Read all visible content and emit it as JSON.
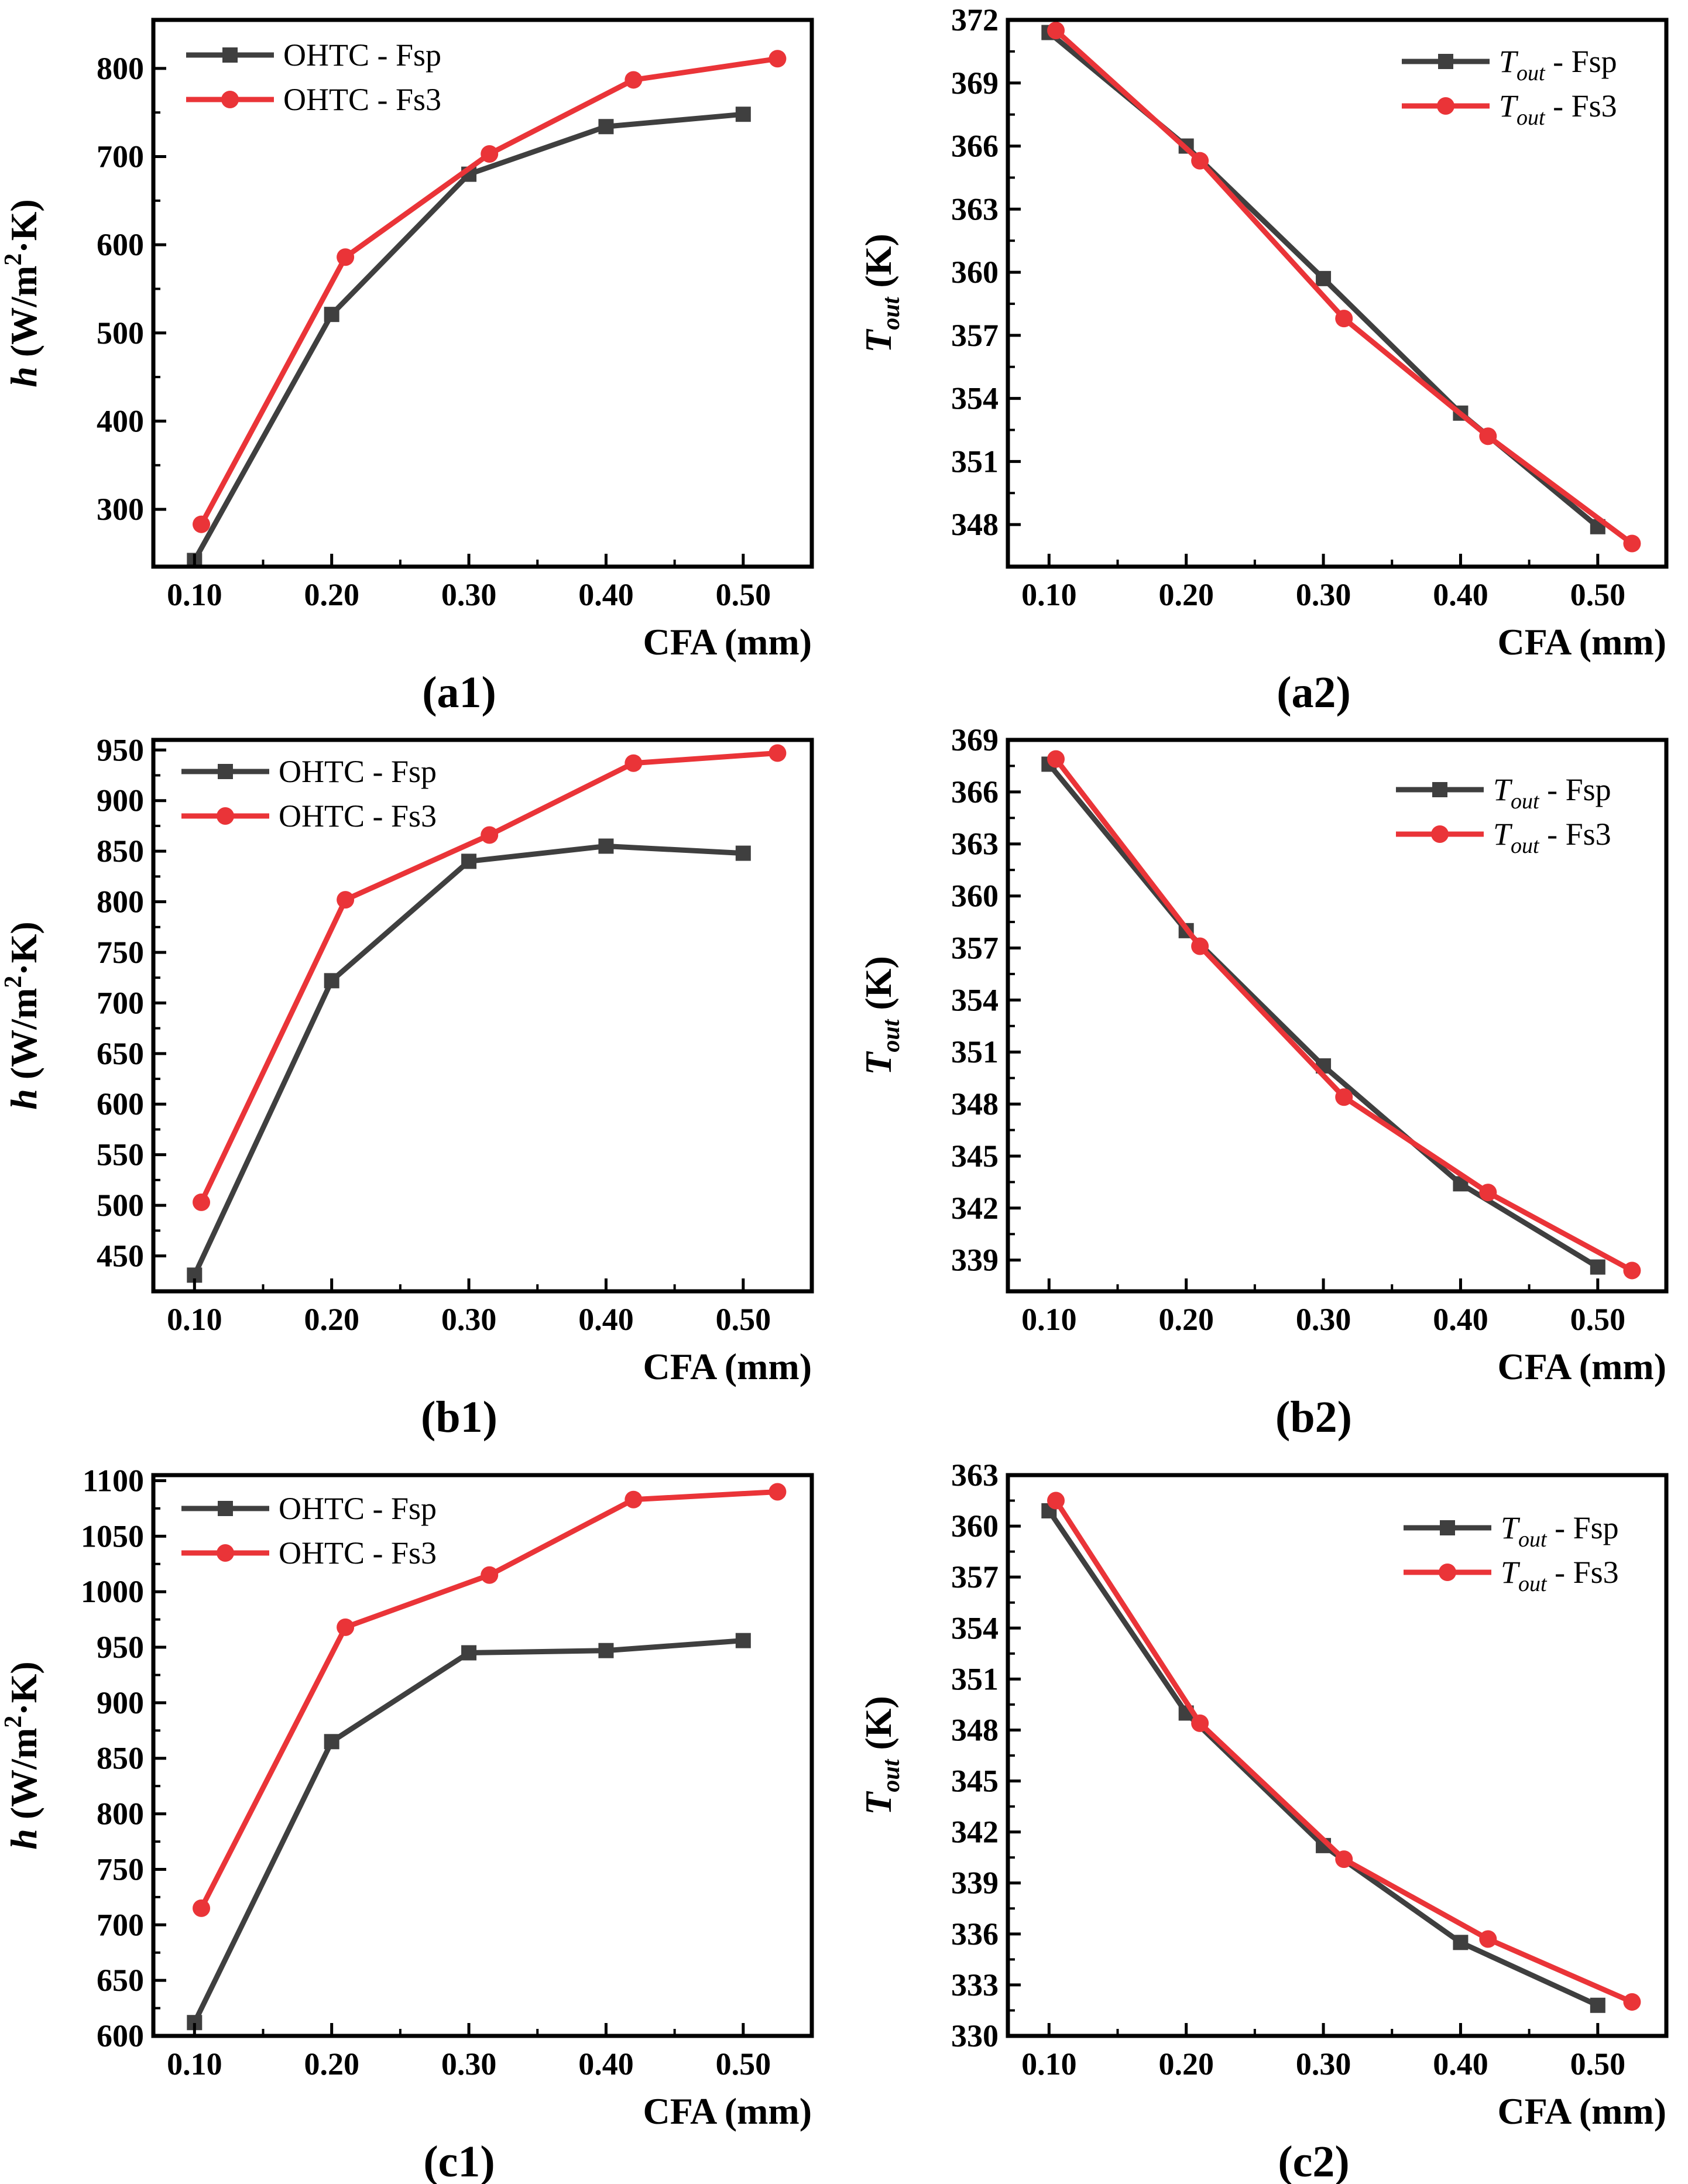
{
  "colors": {
    "fsp": "#3f3f3f",
    "fs3": "#ea3438",
    "axis": "#000000"
  },
  "marker_shapes": {
    "fsp": "square",
    "fs3": "circle"
  },
  "chart_data": [
    {
      "id": "a1",
      "type": "line",
      "panel_label": "(a1)",
      "xlabel": "CFA (mm)",
      "ylabel_var": "h",
      "ylabel_unit_pre": "(W/m",
      "ylabel_sup": "2",
      "ylabel_unit_post": "·K)",
      "xlim": [
        0.07,
        0.55
      ],
      "ylim": [
        235,
        855
      ],
      "xticks": [
        0.1,
        0.2,
        0.3,
        0.4,
        0.5
      ],
      "xtick_labels": [
        "0.10",
        "0.20",
        "0.30",
        "0.40",
        "0.50"
      ],
      "yticks": [
        300,
        400,
        500,
        600,
        700,
        800
      ],
      "ytick_labels": [
        "300",
        "400",
        "500",
        "600",
        "700",
        "800"
      ],
      "legend_position": "top-left",
      "series": [
        {
          "name_var": "OHTC",
          "name_suffix": " - Fsp",
          "key": "fsp",
          "x": [
            0.1,
            0.2,
            0.3,
            0.4,
            0.5
          ],
          "y": [
            242,
            521,
            680,
            734,
            748
          ]
        },
        {
          "name_var": "OHTC",
          "name_suffix": " - Fs3",
          "key": "fs3",
          "x": [
            0.105,
            0.21,
            0.315,
            0.42,
            0.525
          ],
          "y": [
            283,
            586,
            703,
            787,
            811
          ]
        }
      ]
    },
    {
      "id": "a2",
      "type": "line",
      "panel_label": "(a2)",
      "xlabel": "CFA (mm)",
      "ylabel_var": "T",
      "ylabel_sub": "out",
      "ylabel_unit_post": " (K)",
      "xlim": [
        0.07,
        0.55
      ],
      "ylim": [
        346,
        372
      ],
      "xticks": [
        0.1,
        0.2,
        0.3,
        0.4,
        0.5
      ],
      "xtick_labels": [
        "0.10",
        "0.20",
        "0.30",
        "0.40",
        "0.50"
      ],
      "yticks": [
        348,
        351,
        354,
        357,
        360,
        363,
        366,
        369,
        372
      ],
      "ytick_labels": [
        "348",
        "351",
        "354",
        "357",
        "360",
        "363",
        "366",
        "369",
        "372"
      ],
      "legend_position": "top-right",
      "series": [
        {
          "name_var": "T",
          "name_sub": "out",
          "name_suffix": " - Fsp",
          "key": "fsp",
          "x": [
            0.1,
            0.2,
            0.3,
            0.4,
            0.5
          ],
          "y": [
            371.4,
            366.0,
            359.7,
            353.3,
            347.9
          ]
        },
        {
          "name_var": "T",
          "name_sub": "out",
          "name_suffix": " - Fs3",
          "key": "fs3",
          "x": [
            0.105,
            0.21,
            0.315,
            0.42,
            0.525
          ],
          "y": [
            371.5,
            365.3,
            357.8,
            352.2,
            347.1
          ]
        }
      ]
    },
    {
      "id": "b1",
      "type": "line",
      "panel_label": "(b1)",
      "xlabel": "CFA (mm)",
      "ylabel_var": "h",
      "ylabel_unit_pre": "(W/m",
      "ylabel_sup": "2",
      "ylabel_unit_post": "·K)",
      "xlim": [
        0.07,
        0.55
      ],
      "ylim": [
        415,
        960
      ],
      "xticks": [
        0.1,
        0.2,
        0.3,
        0.4,
        0.5
      ],
      "xtick_labels": [
        "0.10",
        "0.20",
        "0.30",
        "0.40",
        "0.50"
      ],
      "yticks": [
        450,
        500,
        550,
        600,
        650,
        700,
        750,
        800,
        850,
        900,
        950
      ],
      "ytick_labels": [
        "450",
        "500",
        "550",
        "600",
        "650",
        "700",
        "750",
        "800",
        "850",
        "900",
        "950"
      ],
      "legend_position": "top-left",
      "series": [
        {
          "name_var": "OHTC",
          "name_suffix": " - Fsp",
          "key": "fsp",
          "x": [
            0.1,
            0.2,
            0.3,
            0.4,
            0.5
          ],
          "y": [
            431,
            722,
            840,
            855,
            848
          ]
        },
        {
          "name_var": "OHTC",
          "name_suffix": " - Fs3",
          "key": "fs3",
          "x": [
            0.105,
            0.21,
            0.315,
            0.42,
            0.525
          ],
          "y": [
            503,
            802,
            866,
            937,
            947
          ]
        }
      ]
    },
    {
      "id": "b2",
      "type": "line",
      "panel_label": "(b2)",
      "xlabel": "CFA (mm)",
      "ylabel_var": "T",
      "ylabel_sub": "out",
      "ylabel_unit_post": " (K)",
      "xlim": [
        0.07,
        0.55
      ],
      "ylim": [
        337.2,
        369
      ],
      "xticks": [
        0.1,
        0.2,
        0.3,
        0.4,
        0.5
      ],
      "xtick_labels": [
        "0.10",
        "0.20",
        "0.30",
        "0.40",
        "0.50"
      ],
      "yticks": [
        339,
        342,
        345,
        348,
        351,
        354,
        357,
        360,
        363,
        366,
        369
      ],
      "ytick_labels": [
        "339",
        "342",
        "345",
        "348",
        "351",
        "354",
        "357",
        "360",
        "363",
        "366",
        "369"
      ],
      "legend_position": "top-right",
      "series": [
        {
          "name_var": "T",
          "name_sub": "out",
          "name_suffix": " - Fsp",
          "key": "fsp",
          "x": [
            0.1,
            0.2,
            0.3,
            0.4,
            0.5
          ],
          "y": [
            367.6,
            358.0,
            350.2,
            343.4,
            338.6
          ]
        },
        {
          "name_var": "T",
          "name_sub": "out",
          "name_suffix": " - Fs3",
          "key": "fs3",
          "x": [
            0.105,
            0.21,
            0.315,
            0.42,
            0.525
          ],
          "y": [
            367.9,
            357.1,
            348.4,
            342.9,
            338.4
          ]
        }
      ]
    },
    {
      "id": "c1",
      "type": "line",
      "panel_label": "(c1)",
      "xlabel": "CFA (mm)",
      "ylabel_var": "h",
      "ylabel_unit_pre": "(W/m",
      "ylabel_sup": "2",
      "ylabel_unit_post": "·K)",
      "xlim": [
        0.07,
        0.55
      ],
      "ylim": [
        600,
        1105
      ],
      "xticks": [
        0.1,
        0.2,
        0.3,
        0.4,
        0.5
      ],
      "xtick_labels": [
        "0.10",
        "0.20",
        "0.30",
        "0.40",
        "0.50"
      ],
      "yticks": [
        600,
        650,
        700,
        750,
        800,
        850,
        900,
        950,
        1000,
        1050,
        1100
      ],
      "ytick_labels": [
        "600",
        "650",
        "700",
        "750",
        "800",
        "850",
        "900",
        "950",
        "1000",
        "1050",
        "1100"
      ],
      "legend_position": "top-left",
      "series": [
        {
          "name_var": "OHTC",
          "name_suffix": " - Fsp",
          "key": "fsp",
          "x": [
            0.1,
            0.2,
            0.3,
            0.4,
            0.5
          ],
          "y": [
            612,
            865,
            945,
            947,
            956
          ]
        },
        {
          "name_var": "OHTC",
          "name_suffix": " - Fs3",
          "key": "fs3",
          "x": [
            0.105,
            0.21,
            0.315,
            0.42,
            0.525
          ],
          "y": [
            715,
            968,
            1015,
            1083,
            1090
          ]
        }
      ]
    },
    {
      "id": "c2",
      "type": "line",
      "panel_label": "(c2)",
      "xlabel": "CFA (mm)",
      "ylabel_var": "T",
      "ylabel_sub": "out",
      "ylabel_unit_post": " (K)",
      "xlim": [
        0.07,
        0.55
      ],
      "ylim": [
        330,
        363
      ],
      "xticks": [
        0.1,
        0.2,
        0.3,
        0.4,
        0.5
      ],
      "xtick_labels": [
        "0.10",
        "0.20",
        "0.30",
        "0.40",
        "0.50"
      ],
      "yticks": [
        330,
        333,
        336,
        339,
        342,
        345,
        348,
        351,
        354,
        357,
        360,
        363
      ],
      "ytick_labels": [
        "330",
        "333",
        "336",
        "339",
        "342",
        "345",
        "348",
        "351",
        "354",
        "357",
        "360",
        "363"
      ],
      "legend_position": "top-right",
      "series": [
        {
          "name_var": "T",
          "name_sub": "out",
          "name_suffix": " - Fsp",
          "key": "fsp",
          "x": [
            0.1,
            0.2,
            0.3,
            0.4,
            0.5
          ],
          "y": [
            360.9,
            349.0,
            341.2,
            335.5,
            331.8
          ]
        },
        {
          "name_var": "T",
          "name_sub": "out",
          "name_suffix": " - Fs3",
          "key": "fs3",
          "x": [
            0.105,
            0.21,
            0.315,
            0.42,
            0.525
          ],
          "y": [
            361.5,
            348.4,
            340.4,
            335.7,
            332.0
          ]
        }
      ]
    }
  ]
}
